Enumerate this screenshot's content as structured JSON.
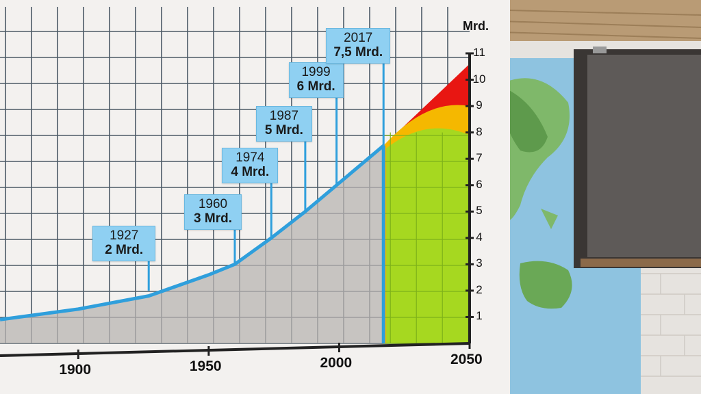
{
  "chart_data": {
    "type": "line",
    "unit_label": "Mrd.",
    "x_ticks": [
      "1900",
      "1950",
      "2000",
      "2050"
    ],
    "y_ticks": [
      "1",
      "2",
      "3",
      "4",
      "5",
      "6",
      "7",
      "8",
      "9",
      "10",
      "11"
    ],
    "ylim": [
      0,
      11
    ],
    "xlim": [
      1870,
      2050
    ],
    "series": [
      {
        "x": [
          1870,
          1900,
          1927,
          1950,
          1960,
          1974,
          1987,
          1999,
          2017
        ],
        "values": [
          0.9,
          1.3,
          1.8,
          2.6,
          3.0,
          4.0,
          5.0,
          6.0,
          7.5
        ]
      }
    ],
    "milestones": [
      {
        "year": "1927",
        "population": "2 Mrd."
      },
      {
        "year": "1960",
        "population": "3 Mrd."
      },
      {
        "year": "1974",
        "population": "4 Mrd."
      },
      {
        "year": "1987",
        "population": "5 Mrd."
      },
      {
        "year": "1999",
        "population": "6 Mrd."
      },
      {
        "year": "2017",
        "population": "7,5 Mrd."
      }
    ],
    "projection_colors": {
      "high": "#e81612",
      "medium": "#f5b800",
      "low": "#a6d820"
    },
    "line_color": "#2f9fdc",
    "label_color": "#8fd0f2"
  }
}
